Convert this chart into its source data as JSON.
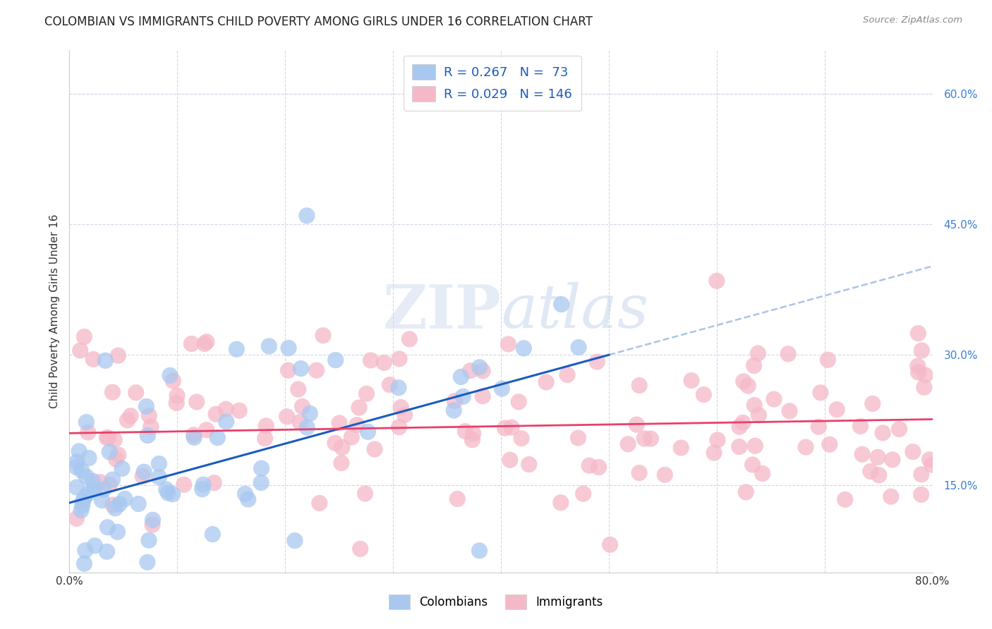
{
  "title": "COLOMBIAN VS IMMIGRANTS CHILD POVERTY AMONG GIRLS UNDER 16 CORRELATION CHART",
  "source": "Source: ZipAtlas.com",
  "ylabel_label": "Child Poverty Among Girls Under 16",
  "right_yticks": [
    15.0,
    30.0,
    45.0,
    60.0
  ],
  "xlim": [
    0.0,
    0.8
  ],
  "ylim": [
    0.05,
    0.65
  ],
  "colombian_color": "#a8c8f0",
  "colombian_edge": "#a8c8f0",
  "immigrant_color": "#f5b8c8",
  "immigrant_edge": "#f5b8c8",
  "trend_colombian_color": "#1a5bbf",
  "trend_immigrant_color": "#e8406a",
  "dash_color": "#aac4e8",
  "R_colombian": 0.267,
  "N_colombian": 73,
  "R_immigrant": 0.029,
  "N_immigrant": 146,
  "watermark_zip": "ZIP",
  "watermark_atlas": "atlas",
  "background_color": "#ffffff",
  "grid_color": "#d0d8e8",
  "legend_fontsize": 13,
  "title_fontsize": 12,
  "axis_label_fontsize": 11,
  "right_tick_color": "#3a7fd4",
  "legend_text_color": "#1a5bbf"
}
